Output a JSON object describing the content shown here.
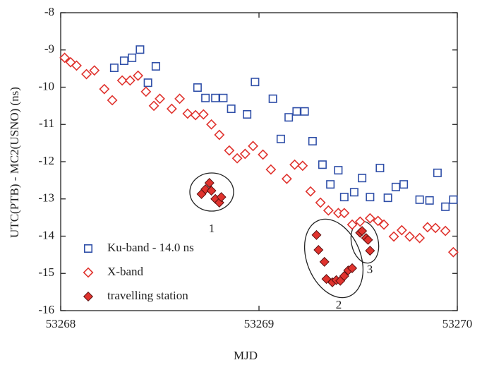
{
  "chart_data": {
    "type": "scatter",
    "xlabel": "MJD",
    "ylabel": "UTC(PTB) - MC2(USNO) (ns)",
    "xlim": [
      53268,
      53270
    ],
    "xticks": [
      53268,
      53269,
      53270
    ],
    "ylim": [
      -16,
      -8
    ],
    "yticks": [
      -16,
      -15,
      -14,
      -13,
      -12,
      -11,
      -10,
      -9,
      -8
    ],
    "legend": "lower left",
    "annotations": [
      "1",
      "2",
      "3"
    ],
    "series": [
      {
        "name": "Ku-band - 14.0 ns",
        "color": "#2f4fa8",
        "marker": "square",
        "filled": false,
        "x": [
          53268.27,
          53268.32,
          53268.36,
          53268.4,
          53268.44,
          53268.48,
          53268.69,
          53268.73,
          53268.78,
          53268.82,
          53268.86,
          53268.94,
          53268.98,
          53269.07,
          53269.11,
          53269.15,
          53269.19,
          53269.23,
          53269.27,
          53269.32,
          53269.36,
          53269.4,
          53269.43,
          53269.48,
          53269.52,
          53269.56,
          53269.61,
          53269.65,
          53269.69,
          53269.73,
          53269.81,
          53269.86,
          53269.9,
          53269.94,
          53269.98
        ],
        "values": [
          -9.48,
          -9.29,
          -9.21,
          -8.99,
          -9.88,
          -9.44,
          -10.01,
          -10.29,
          -10.29,
          -10.29,
          -10.58,
          -10.73,
          -9.86,
          -10.31,
          -11.39,
          -10.81,
          -10.65,
          -10.65,
          -11.45,
          -12.08,
          -12.61,
          -12.23,
          -12.95,
          -12.82,
          -12.44,
          -12.95,
          -12.17,
          -12.97,
          -12.68,
          -12.61,
          -13.02,
          -13.04,
          -12.3,
          -13.21,
          -13.02
        ]
      },
      {
        "name": "X-band",
        "color": "#e0332e",
        "marker": "diamond",
        "filled": false,
        "x": [
          53268.02,
          53268.05,
          53268.08,
          53268.13,
          53268.17,
          53268.22,
          53268.26,
          53268.31,
          53268.35,
          53268.39,
          53268.43,
          53268.47,
          53268.5,
          53268.56,
          53268.6,
          53268.64,
          53268.68,
          53268.72,
          53268.76,
          53268.8,
          53268.85,
          53268.89,
          53268.93,
          53268.97,
          53269.02,
          53269.06,
          53269.14,
          53269.18,
          53269.22,
          53269.26,
          53269.31,
          53269.35,
          53269.4,
          53269.43,
          53269.47,
          53269.51,
          53269.56,
          53269.6,
          53269.63,
          53269.68,
          53269.72,
          53269.76,
          53269.81,
          53269.85,
          53269.89,
          53269.94,
          53269.98
        ],
        "values": [
          -9.21,
          -9.33,
          -9.42,
          -9.65,
          -9.55,
          -10.05,
          -10.35,
          -9.82,
          -9.82,
          -9.69,
          -10.12,
          -10.5,
          -10.31,
          -10.58,
          -10.31,
          -10.71,
          -10.75,
          -10.73,
          -11.0,
          -11.28,
          -11.7,
          -11.91,
          -11.79,
          -11.58,
          -11.81,
          -12.21,
          -12.46,
          -12.08,
          -12.11,
          -12.8,
          -13.1,
          -13.31,
          -13.38,
          -13.38,
          -13.69,
          -13.61,
          -13.52,
          -13.59,
          -13.69,
          -14.01,
          -13.84,
          -14.01,
          -14.05,
          -13.76,
          -13.78,
          -13.86,
          -14.43
        ]
      },
      {
        "name": "travelling station",
        "color": "#e0332e",
        "marker": "diamond",
        "filled": true,
        "x": [
          53268.71,
          53268.73,
          53268.75,
          53268.76,
          53268.78,
          53268.8,
          53268.81,
          53269.29,
          53269.3,
          53269.33,
          53269.34,
          53269.37,
          53269.39,
          53269.41,
          53269.43,
          53269.45,
          53269.47,
          53269.51,
          53269.52,
          53269.54,
          53269.55,
          53269.56
        ],
        "values": [
          -12.87,
          -12.74,
          -12.57,
          -12.78,
          -13.0,
          -13.1,
          -12.95,
          -13.97,
          -14.37,
          -14.69,
          -15.15,
          -15.24,
          -15.18,
          -15.2,
          -15.07,
          -14.92,
          -14.86,
          -13.91,
          -13.86,
          -14.05,
          -14.1,
          -14.39
        ]
      }
    ]
  }
}
